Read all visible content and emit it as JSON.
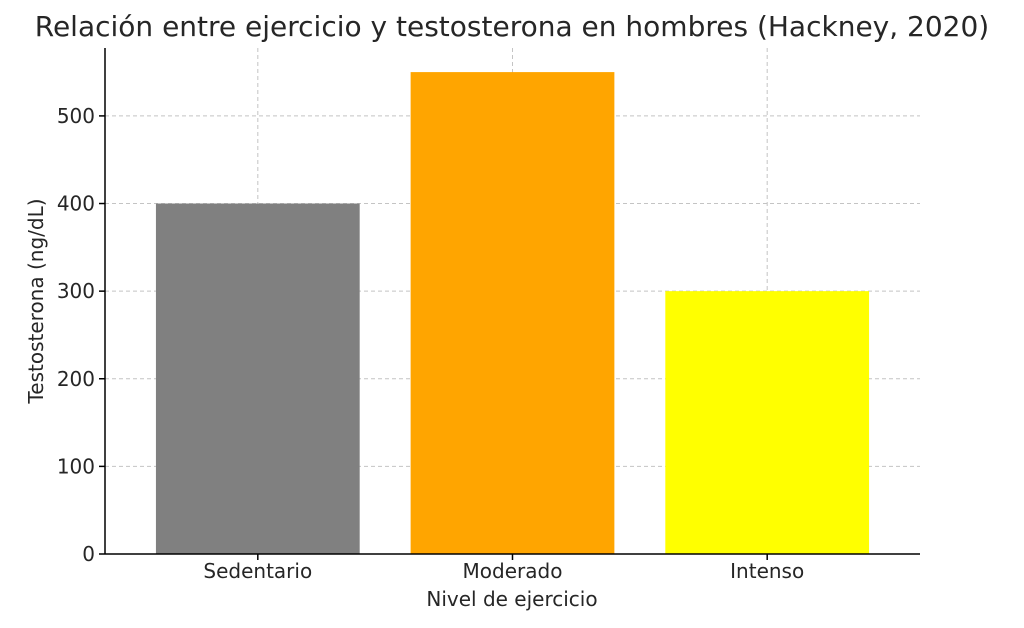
{
  "chart_data": {
    "type": "bar",
    "title": "Relación entre ejercicio y testosterona en hombres (Hackney, 2020)",
    "xlabel": "Nivel de ejercicio",
    "ylabel": "Testosterona (ng/dL)",
    "categories": [
      "Sedentario",
      "Moderado",
      "Intenso"
    ],
    "values": [
      400,
      550,
      300
    ],
    "colors": [
      "#808080",
      "#ffa500",
      "#ffff00"
    ],
    "ylim": [
      0,
      577.5
    ],
    "yticks": [
      0,
      100,
      200,
      300,
      400,
      500
    ],
    "grid": true
  }
}
